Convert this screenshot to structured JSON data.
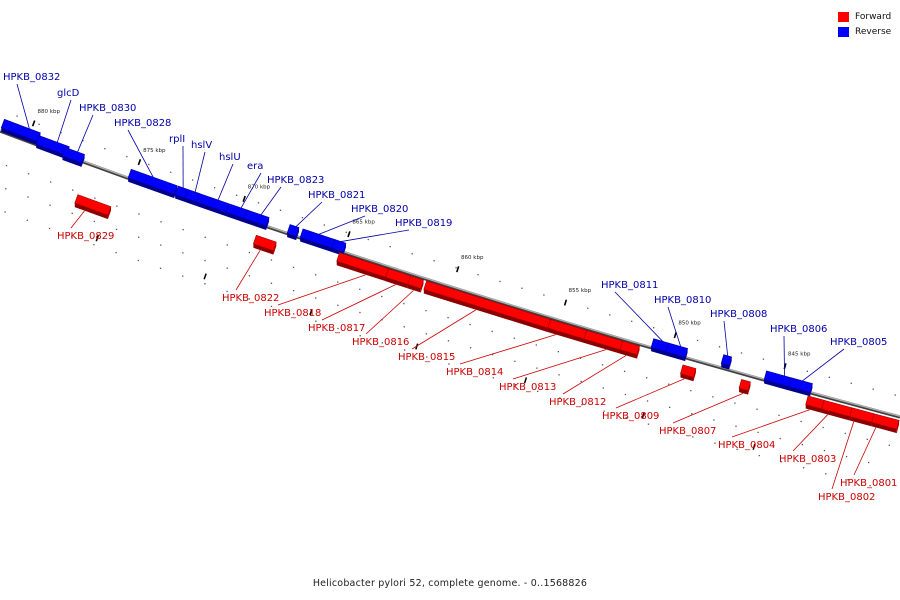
{
  "colors": {
    "forward": "#ff0000",
    "reverse": "#0000ff",
    "backbone": "#808080",
    "forward_label": "#cc0000",
    "reverse_label": "#0000aa"
  },
  "legend": [
    {
      "label": "Forward",
      "strand": "forward"
    },
    {
      "label": "Reverse",
      "strand": "reverse"
    }
  ],
  "caption": "Helicobacter pylori 52, complete genome. - 0..1568826",
  "scale_labels": [
    "880 kbp",
    "875 kbp",
    "870 kbp",
    "865 kbp",
    "860 kbp",
    "855 kbp",
    "850 kbp",
    "845 kbp"
  ],
  "genes": [
    {
      "name": "HPKB_0832",
      "strand": "reverse"
    },
    {
      "name": "glcD",
      "strand": "reverse"
    },
    {
      "name": "HPKB_0830",
      "strand": "reverse"
    },
    {
      "name": "HPKB_0829",
      "strand": "forward"
    },
    {
      "name": "HPKB_0828",
      "strand": "reverse"
    },
    {
      "name": "rplI",
      "strand": "reverse"
    },
    {
      "name": "hslV",
      "strand": "reverse"
    },
    {
      "name": "hslU",
      "strand": "reverse"
    },
    {
      "name": "era",
      "strand": "reverse"
    },
    {
      "name": "HPKB_0823",
      "strand": "reverse"
    },
    {
      "name": "HPKB_0822",
      "strand": "forward"
    },
    {
      "name": "HPKB_0821",
      "strand": "reverse"
    },
    {
      "name": "HPKB_0820",
      "strand": "reverse"
    },
    {
      "name": "HPKB_0819",
      "strand": "reverse"
    },
    {
      "name": "HPKB_0818",
      "strand": "forward"
    },
    {
      "name": "HPKB_0817",
      "strand": "forward"
    },
    {
      "name": "HPKB_0816",
      "strand": "forward"
    },
    {
      "name": "HPKB_0815",
      "strand": "forward"
    },
    {
      "name": "HPKB_0814",
      "strand": "forward"
    },
    {
      "name": "HPKB_0813",
      "strand": "forward"
    },
    {
      "name": "HPKB_0812",
      "strand": "forward"
    },
    {
      "name": "HPKB_0811",
      "strand": "reverse"
    },
    {
      "name": "HPKB_0810",
      "strand": "reverse"
    },
    {
      "name": "HPKB_0809",
      "strand": "forward"
    },
    {
      "name": "HPKB_0808",
      "strand": "reverse"
    },
    {
      "name": "HPKB_0807",
      "strand": "forward"
    },
    {
      "name": "HPKB_0806",
      "strand": "reverse"
    },
    {
      "name": "HPKB_0805",
      "strand": "reverse"
    },
    {
      "name": "HPKB_0804",
      "strand": "forward"
    },
    {
      "name": "HPKB_0803",
      "strand": "forward"
    },
    {
      "name": "HPKB_0802",
      "strand": "forward"
    },
    {
      "name": "HPKB_0801",
      "strand": "forward"
    }
  ]
}
